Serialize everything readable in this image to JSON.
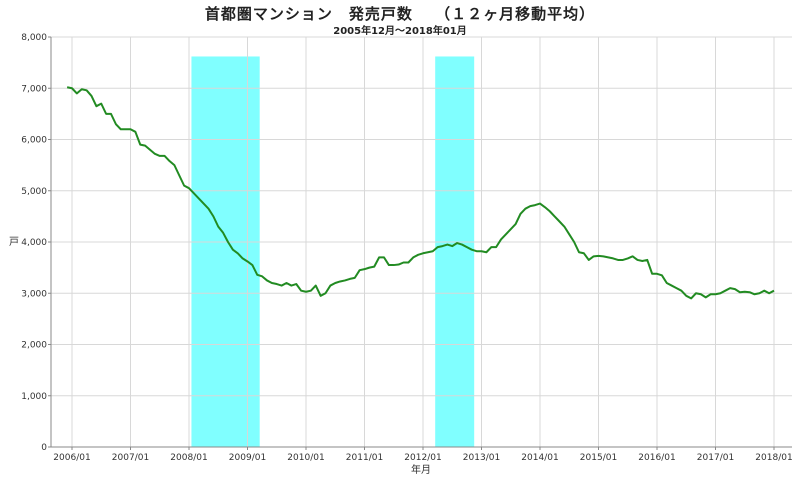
{
  "chart_data": {
    "type": "line",
    "title": "首都圏マンション　発売戸数　 （１２ヶ月移動平均）",
    "subtitle": "2005年12月～2018年01月",
    "xlabel": "年月",
    "ylabel": "戸",
    "ylim": [
      0,
      8000
    ],
    "yticks": [
      "0",
      "1,000",
      "2,000",
      "3,000",
      "4,000",
      "5,000",
      "6,000",
      "7,000",
      "8,000"
    ],
    "xticks": [
      "2006/01",
      "2007/01",
      "2008/01",
      "2009/01",
      "2010/01",
      "2011/01",
      "2012/01",
      "2013/01",
      "2014/01",
      "2015/01",
      "2016/01",
      "2017/01",
      "2018/01"
    ],
    "grid": true,
    "line_color": "#228b22",
    "band_color": "#80ffff",
    "shaded_periods": [
      {
        "start": "2008/02",
        "end": "2009/03"
      },
      {
        "start": "2012/04",
        "end": "2012/11"
      }
    ],
    "series": [
      {
        "name": "",
        "x": [
          "2005/12",
          "2006/01",
          "2006/02",
          "2006/03",
          "2006/04",
          "2006/05",
          "2006/06",
          "2006/07",
          "2006/08",
          "2006/09",
          "2006/10",
          "2006/11",
          "2006/12",
          "2007/01",
          "2007/02",
          "2007/03",
          "2007/04",
          "2007/05",
          "2007/06",
          "2007/07",
          "2007/08",
          "2007/09",
          "2007/10",
          "2007/11",
          "2007/12",
          "2008/01",
          "2008/02",
          "2008/03",
          "2008/04",
          "2008/05",
          "2008/06",
          "2008/07",
          "2008/08",
          "2008/09",
          "2008/10",
          "2008/11",
          "2008/12",
          "2009/01",
          "2009/02",
          "2009/03",
          "2009/04",
          "2009/05",
          "2009/06",
          "2009/07",
          "2009/08",
          "2009/09",
          "2009/10",
          "2009/11",
          "2009/12",
          "2010/01",
          "2010/02",
          "2010/03",
          "2010/04",
          "2010/05",
          "2010/06",
          "2010/07",
          "2010/08",
          "2010/09",
          "2010/10",
          "2010/11",
          "2010/12",
          "2011/01",
          "2011/02",
          "2011/03",
          "2011/04",
          "2011/05",
          "2011/06",
          "2011/07",
          "2011/08",
          "2011/09",
          "2011/10",
          "2011/11",
          "2011/12",
          "2012/01",
          "2012/02",
          "2012/03",
          "2012/04",
          "2012/05",
          "2012/06",
          "2012/07",
          "2012/08",
          "2012/09",
          "2012/10",
          "2012/11",
          "2012/12",
          "2013/01",
          "2013/02",
          "2013/03",
          "2013/04",
          "2013/05",
          "2013/06",
          "2013/07",
          "2013/08",
          "2013/09",
          "2013/10",
          "2013/11",
          "2013/12",
          "2014/01",
          "2014/02",
          "2014/03",
          "2014/04",
          "2014/05",
          "2014/06",
          "2014/07",
          "2014/08",
          "2014/09",
          "2014/10",
          "2014/11",
          "2014/12",
          "2015/01",
          "2015/02",
          "2015/03",
          "2015/04",
          "2015/05",
          "2015/06",
          "2015/07",
          "2015/08",
          "2015/09",
          "2015/10",
          "2015/11",
          "2015/12",
          "2016/01",
          "2016/02",
          "2016/03",
          "2016/04",
          "2016/05",
          "2016/06",
          "2016/07",
          "2016/08",
          "2016/09",
          "2016/10",
          "2016/11",
          "2016/12",
          "2017/01",
          "2017/02",
          "2017/03",
          "2017/04",
          "2017/05",
          "2017/06",
          "2017/07",
          "2017/08",
          "2017/09",
          "2017/10",
          "2017/11",
          "2017/12",
          "2018/01"
        ],
        "values": [
          7020,
          7000,
          6900,
          6980,
          6960,
          6850,
          6650,
          6700,
          6500,
          6500,
          6300,
          6200,
          6200,
          6200,
          6150,
          5900,
          5880,
          5800,
          5720,
          5680,
          5680,
          5580,
          5500,
          5300,
          5100,
          5050,
          4950,
          4850,
          4750,
          4650,
          4500,
          4300,
          4180,
          4000,
          3850,
          3780,
          3680,
          3620,
          3550,
          3360,
          3330,
          3250,
          3200,
          3180,
          3150,
          3200,
          3150,
          3180,
          3050,
          3030,
          3050,
          3150,
          2950,
          3000,
          3150,
          3200,
          3230,
          3250,
          3280,
          3300,
          3450,
          3470,
          3500,
          3520,
          3700,
          3700,
          3550,
          3550,
          3560,
          3600,
          3600,
          3700,
          3750,
          3780,
          3800,
          3820,
          3900,
          3920,
          3950,
          3920,
          3980,
          3950,
          3900,
          3850,
          3820,
          3820,
          3800,
          3900,
          3900,
          4050,
          4150,
          4250,
          4350,
          4550,
          4650,
          4700,
          4720,
          4750,
          4680,
          4600,
          4500,
          4400,
          4300,
          4150,
          4000,
          3800,
          3780,
          3650,
          3720,
          3730,
          3720,
          3700,
          3680,
          3650,
          3650,
          3680,
          3720,
          3650,
          3630,
          3650,
          3380,
          3380,
          3350,
          3200,
          3150,
          3100,
          3050,
          2950,
          2900,
          3000,
          2980,
          2920,
          2980,
          2980,
          3000,
          3050,
          3100,
          3080,
          3020,
          3030,
          3020,
          2980,
          3000,
          3050,
          3000,
          3050
        ]
      }
    ]
  }
}
